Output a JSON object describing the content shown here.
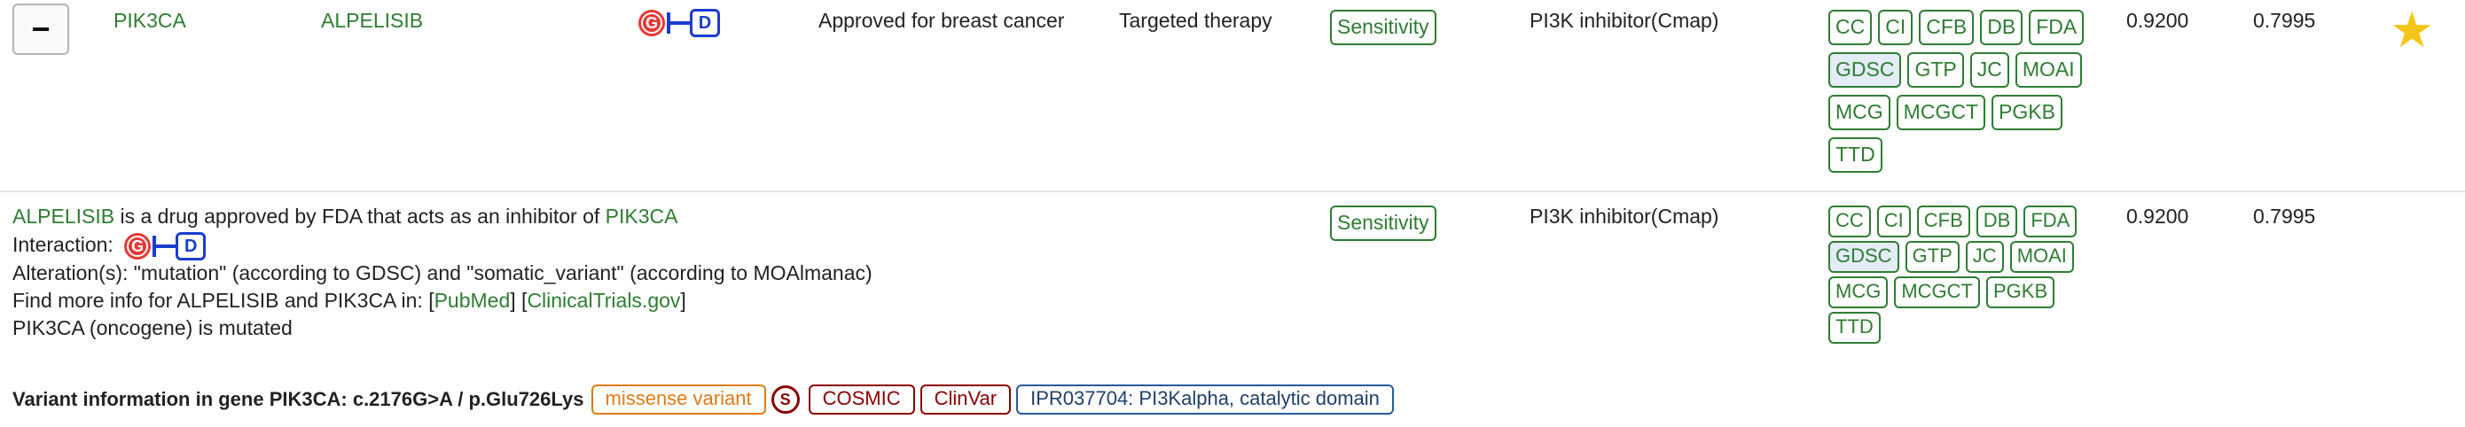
{
  "row": {
    "collapse_symbol": "−",
    "gene": "PIK3CA",
    "drug": "ALPELISIB",
    "interaction": {
      "gene_badge": "G",
      "drug_badge": "D"
    },
    "approval": "Approved for breast cancer",
    "therapy": "Targeted therapy",
    "response": "Sensitivity",
    "moa": "PI3K inhibitor(Cmap)",
    "databases": [
      "CC",
      "CI",
      "CFB",
      "DB",
      "FDA",
      "GDSC",
      "GTP",
      "JC",
      "MOAI",
      "MCG",
      "MCGCT",
      "PGKB",
      "TTD"
    ],
    "highlighted_database": "GDSC",
    "score1": "0.9200",
    "score2": "0.7995",
    "star": "★"
  },
  "details": {
    "drug": "ALPELISIB",
    "desc_middle": " is a drug approved by FDA that acts as an inhibitor of ",
    "gene": "PIK3CA",
    "interaction_label": "Interaction:",
    "alteration": "Alteration(s): \"mutation\" (according to GDSC) and \"somatic_variant\" (according to MOAlmanac)",
    "more_info_prefix": "Find more info for ALPELISIB and PIK3CA in: [",
    "pubmed": "PubMed",
    "between": "] [",
    "clinicaltrials": "ClinicalTrials.gov",
    "more_info_suffix": "]",
    "mutated": "PIK3CA (oncogene) is mutated",
    "response": "Sensitivity",
    "moa": "PI3K inhibitor(Cmap)",
    "score1": "0.9200",
    "score2": "0.7995"
  },
  "variant": {
    "label": "Variant information in gene PIK3CA: c.2176G>A / p.Glu726Lys",
    "consequence": "missense variant",
    "s_badge": "S",
    "cosmic": "COSMIC",
    "clinvar": "ClinVar",
    "domain": "IPR037704: PI3Kalpha, catalytic domain"
  },
  "colors": {
    "link_green": "#2e7d32",
    "gene_badge_red": "#e53935",
    "drug_badge_blue": "#1a3ccf",
    "star_gold": "#f5c518",
    "missense_orange": "#e07b12",
    "cosmic_red": "#8b0000",
    "domain_blue": "#1f3f6b"
  }
}
